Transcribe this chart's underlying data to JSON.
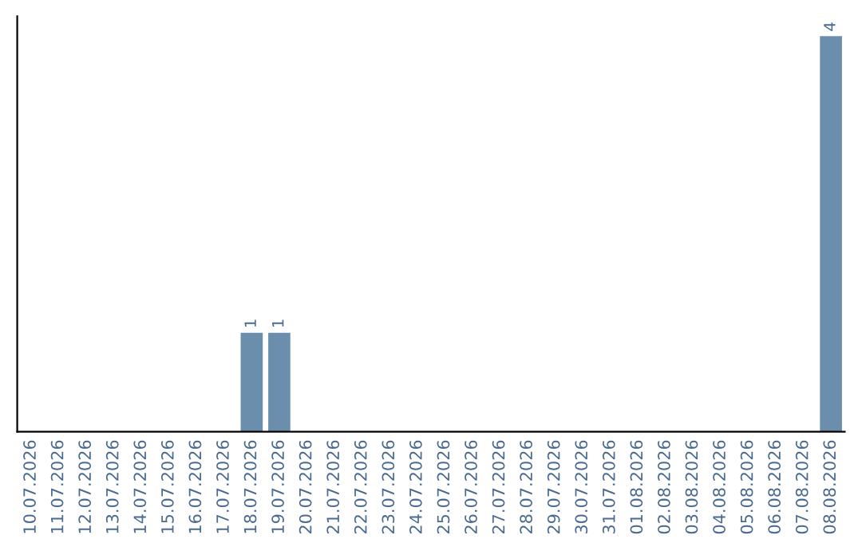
{
  "chart_data": {
    "type": "bar",
    "categories": [
      "10.07.2026",
      "11.07.2026",
      "12.07.2026",
      "13.07.2026",
      "14.07.2026",
      "15.07.2026",
      "16.07.2026",
      "17.07.2026",
      "18.07.2026",
      "19.07.2026",
      "20.07.2026",
      "21.07.2026",
      "22.07.2026",
      "23.07.2026",
      "24.07.2026",
      "25.07.2026",
      "26.07.2026",
      "27.07.2026",
      "28.07.2026",
      "29.07.2026",
      "30.07.2026",
      "31.07.2026",
      "01.08.2026",
      "02.08.2026",
      "03.08.2026",
      "04.08.2026",
      "05.08.2026",
      "06.08.2026",
      "07.08.2026",
      "08.08.2026"
    ],
    "values": [
      0,
      0,
      0,
      0,
      0,
      0,
      0,
      0,
      1,
      1,
      0,
      0,
      0,
      0,
      0,
      0,
      0,
      0,
      0,
      0,
      0,
      0,
      0,
      0,
      0,
      0,
      0,
      0,
      0,
      4
    ],
    "value_labels": [
      null,
      null,
      null,
      null,
      null,
      null,
      null,
      null,
      "1",
      "1",
      null,
      null,
      null,
      null,
      null,
      null,
      null,
      null,
      null,
      null,
      null,
      null,
      null,
      null,
      null,
      null,
      null,
      null,
      null,
      "4"
    ],
    "color": "#6c8ead",
    "tick_labels": "x",
    "grid": false,
    "legend": false
  }
}
